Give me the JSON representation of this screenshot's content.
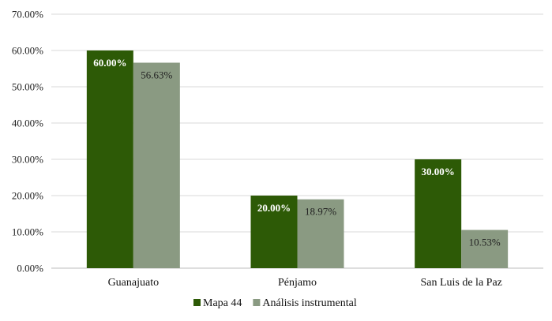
{
  "chart_data": {
    "type": "bar",
    "categories": [
      "Guanajuato",
      "Pénjamo",
      "San Luis de la Paz"
    ],
    "series": [
      {
        "name": "Mapa 44",
        "values": [
          60.0,
          20.0,
          30.0
        ],
        "labels": [
          "60.00%",
          "20.00%",
          "30.00%"
        ],
        "color": "#2d5a06"
      },
      {
        "name": "Análisis instrumental",
        "values": [
          56.63,
          18.97,
          10.53
        ],
        "labels": [
          "56.63%",
          "18.97%",
          "10.53%"
        ],
        "color": "#8a9a82"
      }
    ],
    "y_ticks": [
      "0.00%",
      "10.00%",
      "20.00%",
      "30.00%",
      "40.00%",
      "50.00%",
      "60.00%",
      "70.00%"
    ],
    "ylim": [
      0,
      70
    ],
    "grid": true,
    "legend_position": "bottom"
  }
}
